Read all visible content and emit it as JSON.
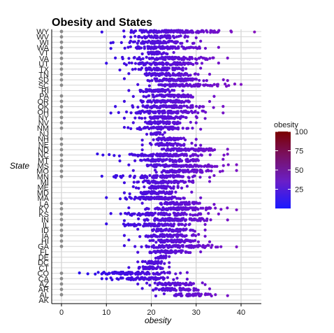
{
  "chart_data": {
    "type": "scatter",
    "title": "Obesity and States",
    "xlabel": "obesity",
    "ylabel": "State",
    "xlim": [
      -2,
      44
    ],
    "x_ticks": [
      0,
      10,
      20,
      30,
      40
    ],
    "grid": "horizontal lines per state, vertical lines at x ticks",
    "legend": {
      "title": "obesity",
      "placement": "right",
      "ticks": [
        25,
        50,
        75,
        100
      ],
      "range": [
        0,
        100
      ],
      "colors": {
        "low": "#1a1aff",
        "mid": "#7a1fb0",
        "high": "#7a0000"
      }
    },
    "states_bottom_to_top": [
      "AK",
      "AL",
      "AR",
      "AZ",
      "CA",
      "CO",
      "CT",
      "DC",
      "DE",
      "FL",
      "GA",
      "HI",
      "IA",
      "ID",
      "IL",
      "IN",
      "KS",
      "KY",
      "LA",
      "MA",
      "MD",
      "ME",
      "MI",
      "MN",
      "MO",
      "MS",
      "MT",
      "NC",
      "ND",
      "NE",
      "NH",
      "NJ",
      "NM",
      "NV",
      "NY",
      "OH",
      "OK",
      "OR",
      "PA",
      "RI",
      "SC",
      "SD",
      "TN",
      "TX",
      "UT",
      "VA",
      "VT",
      "WA",
      "WI",
      "WV",
      "WY"
    ],
    "zero_value_states": [
      "AL",
      "AR",
      "AZ",
      "CA",
      "CO",
      "GA",
      "HI",
      "IA",
      "ID",
      "IL",
      "IN",
      "KS",
      "KY",
      "LA",
      "MN",
      "MO",
      "MS",
      "MT",
      "NC",
      "ND",
      "NE",
      "NH",
      "NM",
      "NV",
      "NY",
      "OH",
      "OK",
      "OR",
      "PA",
      "SC",
      "SD",
      "TN",
      "TX",
      "UT",
      "VA",
      "VT",
      "WA",
      "WI",
      "WV",
      "WY"
    ],
    "state_ranges": {
      "AK": null,
      "AL": [
        21,
        37
      ],
      "AR": [
        18,
        33
      ],
      "AZ": [
        17,
        32
      ],
      "CA": [
        9,
        28
      ],
      "CO": [
        4,
        28
      ],
      "CT": [
        15,
        24
      ],
      "DC": [
        17,
        24
      ],
      "DE": [
        21,
        24
      ],
      "FL": [
        17,
        31
      ],
      "GA": [
        14,
        39
      ],
      "HI": [
        15,
        33
      ],
      "IA": [
        14,
        32
      ],
      "ID": [
        17,
        32
      ],
      "IL": [
        10,
        32
      ],
      "IN": [
        14,
        37
      ],
      "KS": [
        11,
        35
      ],
      "KY": [
        15,
        39
      ],
      "LA": [
        18,
        34
      ],
      "MA": [
        10,
        31
      ],
      "MD": [
        14,
        29
      ],
      "ME": [
        16,
        28
      ],
      "MI": [
        14,
        33
      ],
      "MN": [
        9,
        34
      ],
      "MO": [
        16,
        39
      ],
      "MS": [
        15,
        39
      ],
      "MT": [
        13,
        36
      ],
      "NC": [
        8,
        37
      ],
      "ND": [
        18,
        37
      ],
      "NE": [
        18,
        31
      ],
      "NH": [
        18,
        30
      ],
      "NJ": [
        19,
        23
      ],
      "NM": [
        14,
        31
      ],
      "NV": [
        16,
        30
      ],
      "NY": [
        14,
        32
      ],
      "OH": [
        11,
        36
      ],
      "OK": [
        12,
        36
      ],
      "OR": [
        14,
        33
      ],
      "PA": [
        16,
        34
      ],
      "RI": [
        15,
        27
      ],
      "SC": [
        17,
        40
      ],
      "SD": [
        14,
        37
      ],
      "TN": [
        15,
        33
      ],
      "TX": [
        13,
        31
      ],
      "UT": [
        10,
        35
      ],
      "VA": [
        12,
        37
      ],
      "VT": [
        18,
        25
      ],
      "WA": [
        11,
        35
      ],
      "WI": [
        11,
        31
      ],
      "WV": [
        14,
        30
      ],
      "WY": [
        9,
        43
      ]
    }
  }
}
